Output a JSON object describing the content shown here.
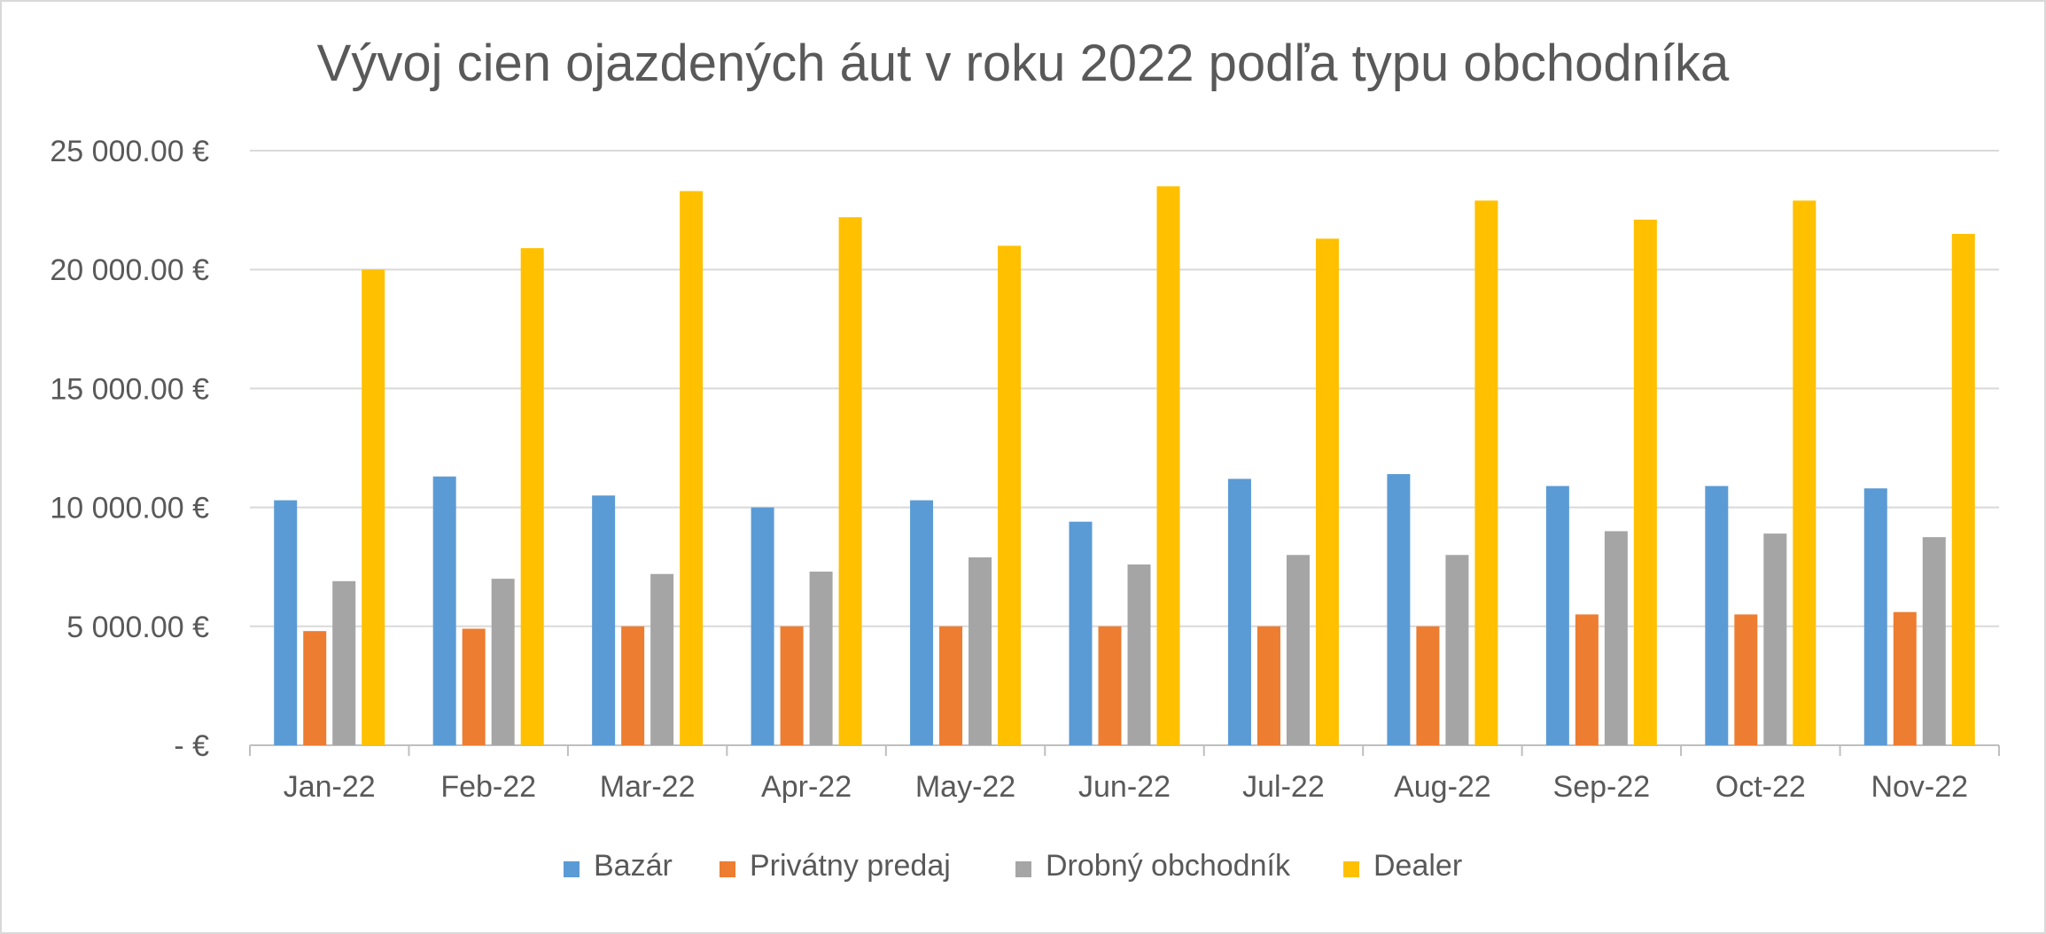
{
  "chart_data": {
    "type": "bar",
    "title": "Vývoj cien ojazdených áut v roku 2022 podľa typu obchodníka",
    "categories": [
      "Jan-22",
      "Feb-22",
      "Mar-22",
      "Apr-22",
      "May-22",
      "Jun-22",
      "Jul-22",
      "Aug-22",
      "Sep-22",
      "Oct-22",
      "Nov-22"
    ],
    "series": [
      {
        "name": "Bazár",
        "color": "#5b9bd5",
        "values": [
          10300,
          11300,
          10500,
          10000,
          10300,
          9400,
          11200,
          11400,
          10900,
          10900,
          10800
        ]
      },
      {
        "name": "Privátny predaj",
        "color": "#ed7d31",
        "values": [
          4800,
          4900,
          5000,
          5000,
          5000,
          5000,
          5000,
          5000,
          5500,
          5500,
          5600
        ]
      },
      {
        "name": "Drobný obchodník",
        "color": "#a5a5a5",
        "values": [
          6900,
          7000,
          7200,
          7300,
          7900,
          7600,
          8000,
          8000,
          9000,
          8900,
          8750
        ]
      },
      {
        "name": "Dealer",
        "color": "#ffc000",
        "values": [
          20000,
          20900,
          23300,
          22200,
          21000,
          23500,
          21300,
          22900,
          22100,
          22900,
          21500
        ]
      }
    ],
    "ylim": [
      0,
      25000
    ],
    "y_ticks": [
      {
        "value": 0,
        "label": "-   €"
      },
      {
        "value": 5000,
        "label": "5 000.00 €"
      },
      {
        "value": 10000,
        "label": "10 000.00 €"
      },
      {
        "value": 15000,
        "label": "15 000.00 €"
      },
      {
        "value": 20000,
        "label": "20 000.00 €"
      },
      {
        "value": 25000,
        "label": "25 000.00 €"
      }
    ],
    "grid": true,
    "legend_position": "bottom"
  }
}
